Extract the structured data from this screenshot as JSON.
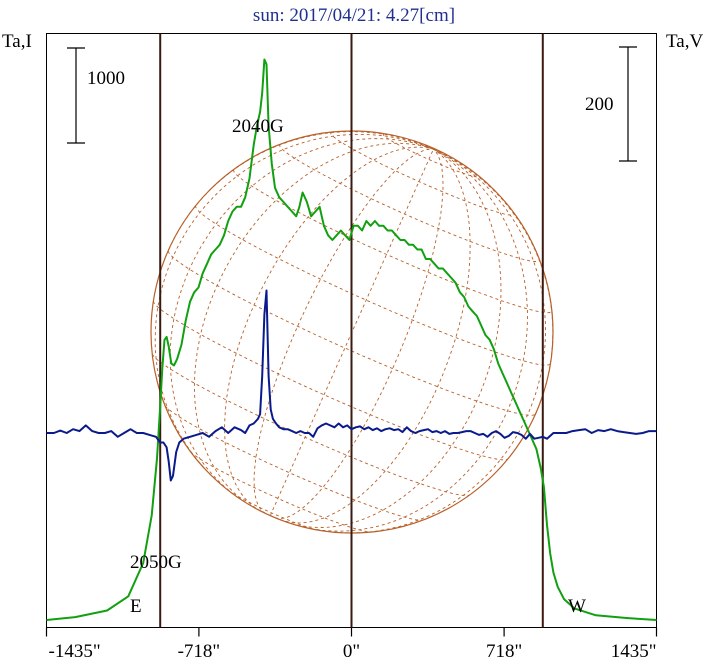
{
  "chart_data": {
    "type": "line",
    "title": "sun: 2017/04/21: 4.27[cm]",
    "left_axis_label": "Ta,I",
    "right_axis_label": "Ta,V",
    "x_ticks": [
      "-1435\"",
      "-718\"",
      "0\"",
      "718\"",
      "1435\""
    ],
    "x_tick_values": [
      -1435,
      -718,
      0,
      718,
      1435
    ],
    "xlim": [
      -1435,
      1435
    ],
    "scale_bar_left": {
      "label": "1000",
      "value": 1000
    },
    "scale_bar_right": {
      "label": "200",
      "value": 200
    },
    "limb_markers": [
      {
        "label": "E",
        "x": -900
      },
      {
        "label": "W",
        "x": 900
      }
    ],
    "annotations": [
      {
        "label": "2040G",
        "x": -400
      },
      {
        "label": "2050G",
        "x": -860
      }
    ],
    "colors": {
      "title": "#203090",
      "intensity": "#10a010",
      "circular_polarization": "#0a1a8c",
      "solar_disk": "#b8602a",
      "frame": "#000000",
      "vertical_lines": "#3a1a10"
    },
    "series": [
      {
        "name": "Ta,I",
        "axis": "left",
        "x": [
          -1435,
          -1300,
          -1150,
          -1050,
          -980,
          -940,
          -915,
          -900,
          -890,
          -880,
          -870,
          -860,
          -848,
          -835,
          -820,
          -800,
          -780,
          -760,
          -740,
          -720,
          -700,
          -680,
          -660,
          -640,
          -620,
          -600,
          -580,
          -560,
          -540,
          -520,
          -500,
          -480,
          -460,
          -445,
          -430,
          -420,
          -410,
          -400,
          -390,
          -375,
          -360,
          -340,
          -320,
          -300,
          -280,
          -260,
          -245,
          -230,
          -210,
          -190,
          -170,
          -150,
          -130,
          -110,
          -90,
          -70,
          -50,
          -30,
          -10,
          10,
          30,
          50,
          70,
          90,
          110,
          130,
          150,
          170,
          190,
          210,
          230,
          250,
          270,
          290,
          310,
          330,
          350,
          370,
          390,
          410,
          430,
          450,
          470,
          490,
          510,
          530,
          550,
          570,
          590,
          610,
          630,
          650,
          670,
          690,
          710,
          730,
          750,
          770,
          790,
          810,
          830,
          850,
          870,
          890,
          905,
          920,
          935,
          950,
          970,
          1000,
          1050,
          1150,
          1300,
          1435
        ],
        "y": [
          0,
          30,
          100,
          250,
          600,
          1100,
          1700,
          2250,
          2650,
          2950,
          2980,
          2880,
          2700,
          2680,
          2750,
          2900,
          3150,
          3350,
          3450,
          3500,
          3650,
          3750,
          3850,
          3900,
          3950,
          4050,
          4200,
          4300,
          4350,
          4350,
          4450,
          4650,
          5000,
          5200,
          5350,
          5550,
          5900,
          5850,
          5200,
          4800,
          4550,
          4450,
          4400,
          4350,
          4300,
          4250,
          4350,
          4500,
          4400,
          4250,
          4300,
          4350,
          4150,
          4050,
          4000,
          4050,
          4100,
          4050,
          4000,
          4150,
          4150,
          4100,
          4200,
          4150,
          4200,
          4150,
          4150,
          4100,
          4100,
          4050,
          4000,
          4000,
          3950,
          3950,
          3900,
          3900,
          3800,
          3800,
          3750,
          3700,
          3700,
          3650,
          3600,
          3550,
          3450,
          3400,
          3300,
          3250,
          3200,
          3100,
          3000,
          2950,
          2850,
          2700,
          2600,
          2500,
          2400,
          2300,
          2200,
          2100,
          2000,
          1900,
          1800,
          1600,
          1400,
          1000,
          700,
          500,
          350,
          220,
          120,
          50,
          20,
          0
        ]
      },
      {
        "name": "Ta,V",
        "axis": "right",
        "x": [
          -1435,
          -1400,
          -1370,
          -1340,
          -1310,
          -1280,
          -1250,
          -1220,
          -1190,
          -1160,
          -1130,
          -1100,
          -1070,
          -1040,
          -1010,
          -980,
          -950,
          -920,
          -900,
          -885,
          -870,
          -860,
          -850,
          -840,
          -825,
          -810,
          -790,
          -760,
          -730,
          -700,
          -670,
          -640,
          -610,
          -580,
          -550,
          -520,
          -500,
          -480,
          -460,
          -440,
          -430,
          -420,
          -410,
          -400,
          -390,
          -380,
          -370,
          -355,
          -340,
          -320,
          -300,
          -280,
          -260,
          -240,
          -220,
          -200,
          -180,
          -160,
          -140,
          -120,
          -100,
          -80,
          -60,
          -40,
          -20,
          0,
          20,
          40,
          60,
          80,
          100,
          120,
          140,
          160,
          180,
          200,
          220,
          240,
          260,
          280,
          300,
          320,
          340,
          360,
          380,
          400,
          420,
          440,
          460,
          480,
          500,
          520,
          540,
          560,
          580,
          600,
          620,
          640,
          660,
          680,
          700,
          720,
          740,
          760,
          780,
          800,
          820,
          840,
          860,
          880,
          900,
          920,
          950,
          980,
          1010,
          1040,
          1070,
          1100,
          1130,
          1160,
          1190,
          1220,
          1250,
          1280,
          1310,
          1340,
          1370,
          1400,
          1435
        ],
        "y": [
          0,
          0,
          5,
          0,
          8,
          4,
          16,
          4,
          0,
          0,
          4,
          -8,
          0,
          8,
          0,
          0,
          -4,
          -8,
          -20,
          -20,
          -30,
          -60,
          -100,
          -90,
          -40,
          -20,
          -12,
          -8,
          -4,
          0,
          -8,
          4,
          12,
          0,
          12,
          6,
          0,
          16,
          20,
          30,
          40,
          120,
          250,
          300,
          120,
          50,
          30,
          20,
          12,
          8,
          8,
          4,
          0,
          4,
          0,
          0,
          -8,
          10,
          16,
          20,
          16,
          12,
          20,
          12,
          16,
          8,
          12,
          14,
          8,
          12,
          6,
          10,
          4,
          8,
          10,
          6,
          8,
          2,
          12,
          4,
          0,
          4,
          6,
          8,
          2,
          4,
          0,
          4,
          -2,
          0,
          0,
          2,
          4,
          4,
          0,
          -4,
          -2,
          -8,
          0,
          4,
          -2,
          -10,
          -6,
          2,
          0,
          -4,
          -12,
          -2,
          -12,
          -10,
          -8,
          -12,
          0,
          0,
          0,
          4,
          6,
          8,
          0,
          6,
          4,
          8,
          4,
          2,
          0,
          -2,
          0,
          4,
          4
        ]
      }
    ]
  }
}
